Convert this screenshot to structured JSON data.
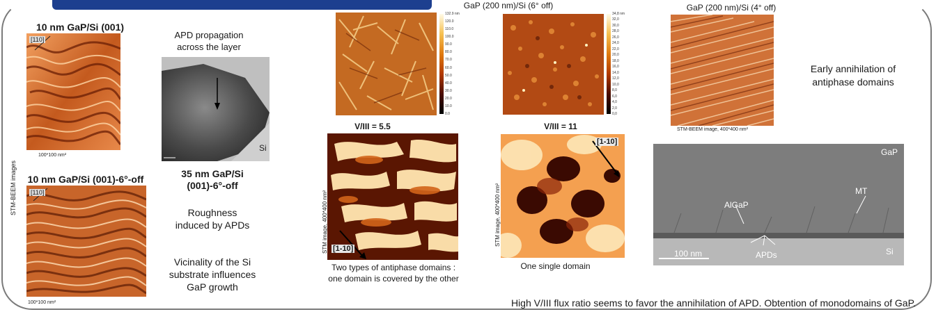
{
  "left_column": {
    "title_top": "10 nm GaP/Si (001)",
    "title_bottom": "10 nm GaP/Si (001)-6°-off",
    "dir_label_top": "[110]",
    "dir_label_bottom": "[110]",
    "scale_top": "100*100 nm²",
    "scale_bottom": "100*100 nm²",
    "side_label": "STM-BEEM images"
  },
  "tem_column": {
    "caption_top_line1": "APD propagation",
    "caption_top_line2": "across the layer",
    "si_label": "Si",
    "title_line1": "35 nm GaP/Si",
    "title_line2": "(001)-6°-off",
    "note1_line1": "Roughness",
    "note1_line2": "induced by APDs",
    "note2_line1": "Vicinality of the Si",
    "note2_line2": "substrate influences",
    "note2_line3": "GaP growth"
  },
  "afm_left": {
    "colorbar_ticks": [
      "132.9 nm",
      "120.0",
      "110.0",
      "100.0",
      "90.0",
      "80.0",
      "70.0",
      "60.0",
      "50.0",
      "40.0",
      "30.0",
      "20.0",
      "10.0",
      "0.0"
    ],
    "ratio_label": "V/III = 5.5",
    "stm_side": "STM image, 400*400 nm²",
    "dir_label": "[1-10]",
    "caption_line1": "Two types of antiphase domains :",
    "caption_line2": "one domain is covered by the other"
  },
  "afm_mid": {
    "header": "GaP (200 nm)/Si (6° off)",
    "colorbar_ticks": [
      "34,8 nm",
      "32,0",
      "30,0",
      "28,0",
      "26,0",
      "24,0",
      "22,0",
      "20,0",
      "18,0",
      "16,0",
      "14,0",
      "12,0",
      "10,0",
      "8,0",
      "6,0",
      "4,0",
      "2,0",
      "0,0"
    ],
    "ratio_label": "V/III = 11",
    "stm_side": "STM image, 400*400 nm²",
    "dir_label": "[1-10]",
    "caption": "One single domain"
  },
  "right_column": {
    "header": "GaP (200 nm)/Si (4° off)",
    "stm_caption": "STM-BEEM image, 400*400 nm²",
    "note_line1": "Early annihilation of",
    "note_line2": "antiphase domains",
    "tem_gap": "GaP",
    "tem_mt": "MT",
    "tem_algap": "AlGaP",
    "tem_si": "Si",
    "tem_apds": "APDs",
    "tem_scale": "100 nm"
  },
  "bottom_note": "High V/III flux ratio seems to favor the annihilation of APD. Obtention of monodomains of GaP."
}
